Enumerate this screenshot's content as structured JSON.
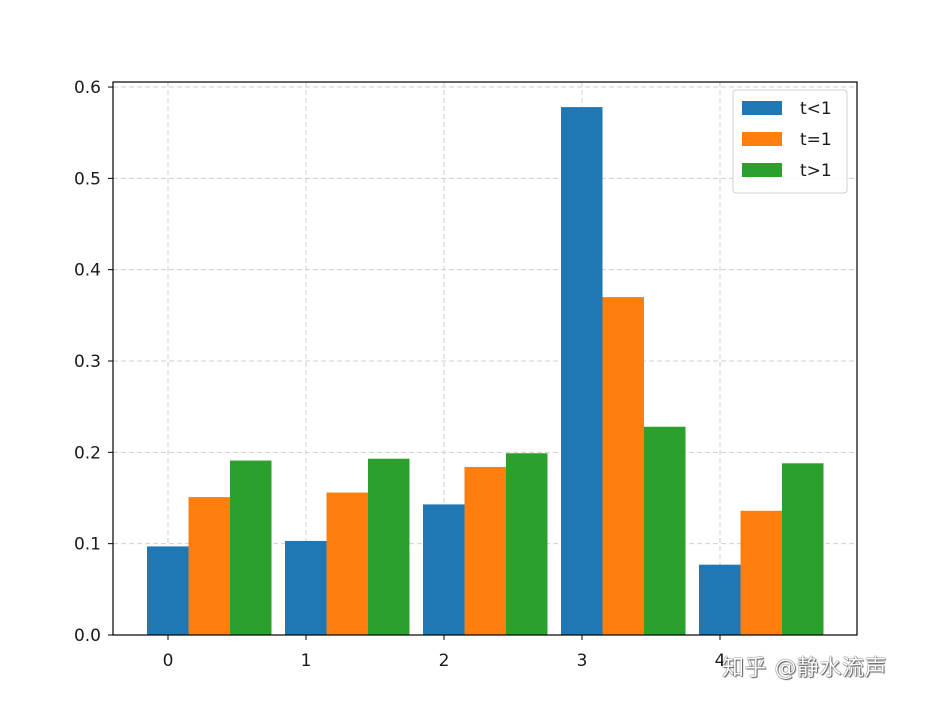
{
  "chart_data": {
    "type": "bar",
    "categories": [
      "0",
      "1",
      "2",
      "3",
      "4"
    ],
    "series": [
      {
        "name": "t<1",
        "color": "#1f77b4",
        "values": [
          0.097,
          0.103,
          0.143,
          0.578,
          0.077
        ]
      },
      {
        "name": "t=1",
        "color": "#ff7f0e",
        "values": [
          0.151,
          0.156,
          0.184,
          0.37,
          0.136
        ]
      },
      {
        "name": "t>1",
        "color": "#2ca02c",
        "values": [
          0.191,
          0.193,
          0.199,
          0.228,
          0.188
        ]
      }
    ],
    "ylim": [
      0,
      0.6
    ],
    "yticks": [
      "0.0",
      "0.1",
      "0.2",
      "0.3",
      "0.4",
      "0.5",
      "0.6"
    ],
    "grid": true,
    "legend_position": "top-right"
  },
  "watermark": "知乎 @静水流声"
}
